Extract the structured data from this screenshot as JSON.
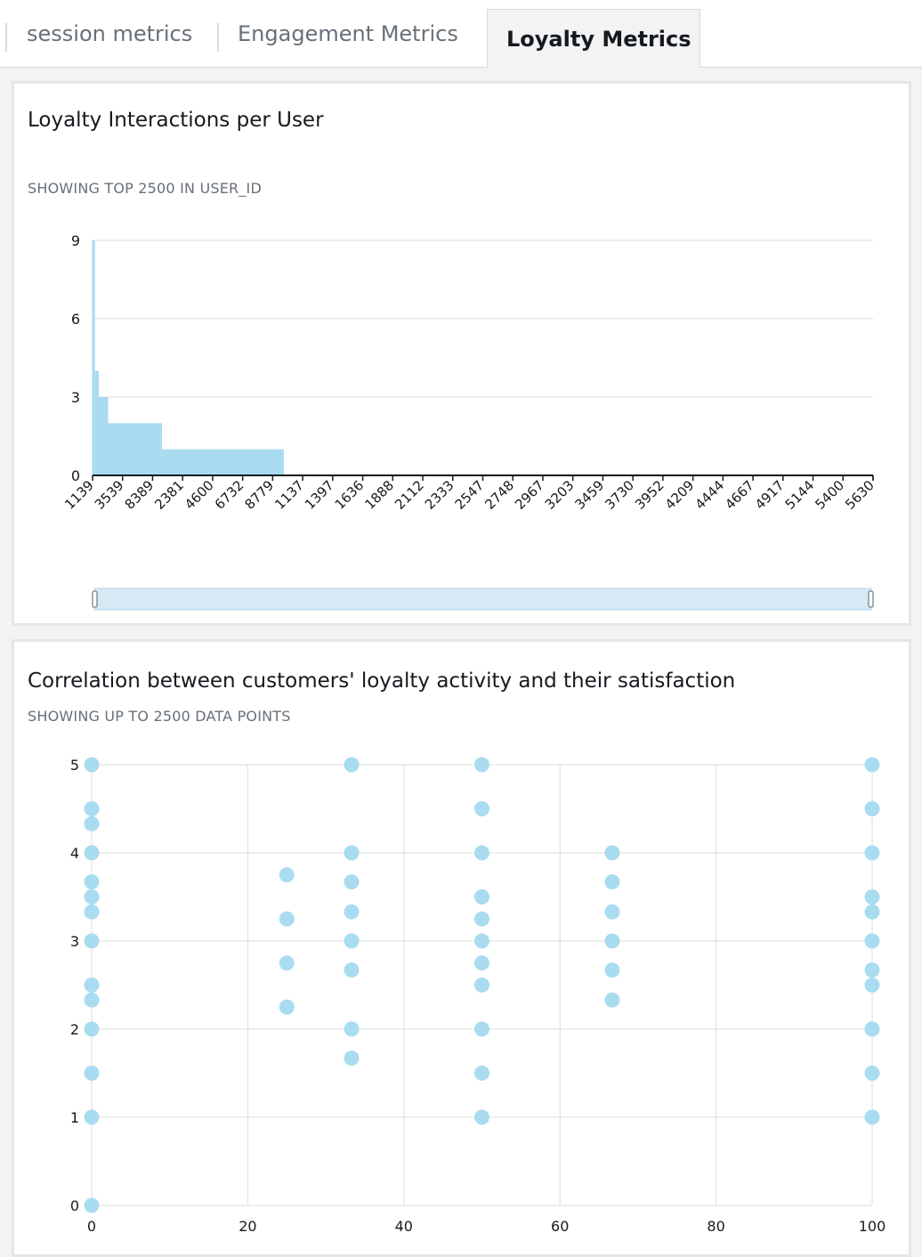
{
  "tabs": [
    {
      "label": "session metrics",
      "active": false
    },
    {
      "label": "Engagement Metrics",
      "active": false
    },
    {
      "label": "Loyalty Metrics",
      "active": true
    }
  ],
  "panel1": {
    "title": "Loyalty Interactions per User",
    "subtitle": "SHOWING TOP 2500 IN USER_ID"
  },
  "panel2": {
    "title": "Correlation between customers' loyalty activity and their satisfaction",
    "subtitle": "SHOWING UP TO 2500 DATA POINTS"
  },
  "colors": {
    "accent": "#a9dcf0",
    "grid": "#dddddd",
    "axis": "#16191f",
    "brush": "#d6e9f5"
  },
  "chart_data": [
    {
      "type": "bar",
      "title": "Loyalty Interactions per User",
      "subtitle": "SHOWING TOP 2500 IN USER_ID",
      "categories": [
        "1139",
        "3539",
        "8389",
        "2381",
        "4600",
        "6732",
        "8779",
        "1137",
        "1397",
        "1636",
        "1888",
        "2112",
        "2333",
        "2547",
        "2748",
        "2967",
        "3203",
        "3459",
        "3730",
        "3952",
        "4209",
        "4444",
        "4667",
        "4917",
        "5144",
        "5400",
        "5630"
      ],
      "ylim": [
        0,
        9
      ],
      "yticks": [
        0,
        3,
        6,
        9
      ],
      "profile": [
        {
          "from": 0,
          "to": 0.003,
          "value": 9
        },
        {
          "from": 0.003,
          "to": 0.008,
          "value": 4
        },
        {
          "from": 0.008,
          "to": 0.02,
          "value": 3
        },
        {
          "from": 0.02,
          "to": 0.089,
          "value": 2
        },
        {
          "from": 0.089,
          "to": 0.245,
          "value": 1
        }
      ],
      "grid": true,
      "brush_range": [
        0,
        1
      ]
    },
    {
      "type": "scatter",
      "title": "Correlation between customers' loyalty activity and their satisfaction",
      "subtitle": "SHOWING UP TO 2500 DATA POINTS",
      "xlim": [
        0,
        100
      ],
      "ylim": [
        0,
        5
      ],
      "xticks": [
        0,
        20,
        40,
        60,
        80,
        100
      ],
      "yticks": [
        0,
        1,
        2,
        3,
        4,
        5
      ],
      "grid": true,
      "points": [
        [
          0,
          5
        ],
        [
          0,
          4.5
        ],
        [
          0,
          4.33
        ],
        [
          0,
          4
        ],
        [
          0,
          3.67
        ],
        [
          0,
          3.5
        ],
        [
          0,
          3.33
        ],
        [
          0,
          3
        ],
        [
          0,
          2.5
        ],
        [
          0,
          2.33
        ],
        [
          0,
          2
        ],
        [
          0,
          1.5
        ],
        [
          0,
          1
        ],
        [
          0,
          0
        ],
        [
          25,
          3.75
        ],
        [
          25,
          3.25
        ],
        [
          25,
          2.75
        ],
        [
          25,
          2.25
        ],
        [
          33.3,
          5
        ],
        [
          33.3,
          4
        ],
        [
          33.3,
          3.67
        ],
        [
          33.3,
          3.33
        ],
        [
          33.3,
          3
        ],
        [
          33.3,
          2.67
        ],
        [
          33.3,
          2
        ],
        [
          33.3,
          1.67
        ],
        [
          50,
          5
        ],
        [
          50,
          4.5
        ],
        [
          50,
          4
        ],
        [
          50,
          3.5
        ],
        [
          50,
          3.25
        ],
        [
          50,
          3
        ],
        [
          50,
          2.75
        ],
        [
          50,
          2.5
        ],
        [
          50,
          2
        ],
        [
          50,
          1.5
        ],
        [
          50,
          1
        ],
        [
          66.7,
          4
        ],
        [
          66.7,
          3.67
        ],
        [
          66.7,
          3.33
        ],
        [
          66.7,
          3
        ],
        [
          66.7,
          2.67
        ],
        [
          66.7,
          2.33
        ],
        [
          100,
          5
        ],
        [
          100,
          4.5
        ],
        [
          100,
          4
        ],
        [
          100,
          3.5
        ],
        [
          100,
          3.33
        ],
        [
          100,
          3
        ],
        [
          100,
          2.67
        ],
        [
          100,
          2.5
        ],
        [
          100,
          2
        ],
        [
          100,
          1.5
        ],
        [
          100,
          1
        ]
      ]
    }
  ]
}
